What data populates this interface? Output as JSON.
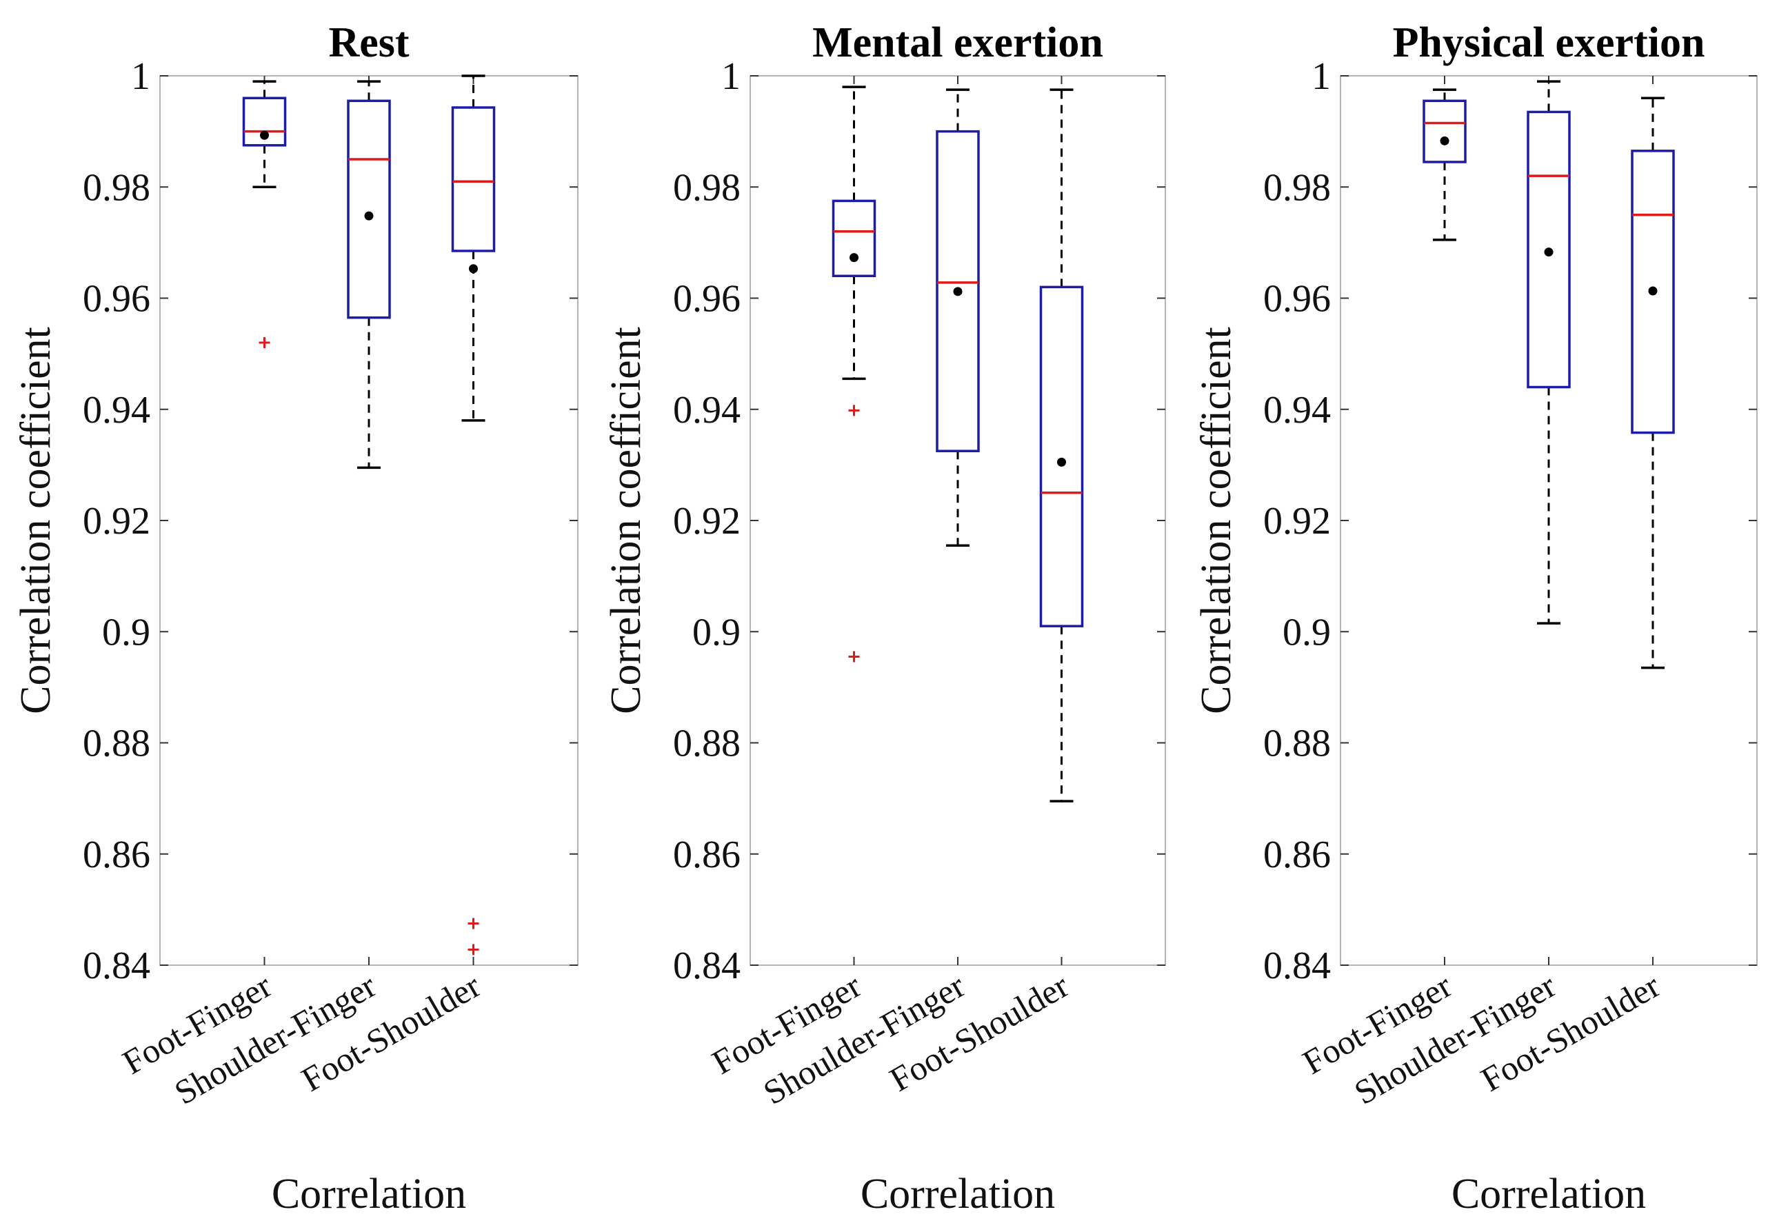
{
  "chart_data": [
    {
      "type": "box",
      "title": "Rest",
      "xlabel": "Correlation",
      "ylabel": "Correlation coefficient",
      "ylim": [
        0.84,
        1.0
      ],
      "yticks": [
        "0.84",
        "0.86",
        "0.88",
        "0.9",
        "0.92",
        "0.94",
        "0.96",
        "0.98",
        "1"
      ],
      "categories": [
        "Foot-Finger",
        "Shoulder-Finger",
        "Foot-Shoulder"
      ],
      "boxes": [
        {
          "whisker_low": 0.98,
          "q1": 0.9875,
          "median": 0.99,
          "q3": 0.996,
          "whisker_high": 0.999,
          "mean": 0.9893,
          "outliers": [
            0.952
          ]
        },
        {
          "whisker_low": 0.9295,
          "q1": 0.9565,
          "median": 0.985,
          "q3": 0.9955,
          "whisker_high": 0.999,
          "mean": 0.9748,
          "outliers": []
        },
        {
          "whisker_low": 0.938,
          "q1": 0.9685,
          "median": 0.981,
          "q3": 0.9943,
          "whisker_high": 1.0,
          "mean": 0.9653,
          "outliers": [
            0.8475,
            0.8428
          ]
        }
      ]
    },
    {
      "type": "box",
      "title": "Mental exertion",
      "xlabel": "Correlation",
      "ylabel": "Correlation coefficient",
      "ylim": [
        0.84,
        1.0
      ],
      "yticks": [
        "0.84",
        "0.86",
        "0.88",
        "0.9",
        "0.92",
        "0.94",
        "0.96",
        "0.98",
        "1"
      ],
      "categories": [
        "Foot-Finger",
        "Shoulder-Finger",
        "Foot-Shoulder"
      ],
      "boxes": [
        {
          "whisker_low": 0.9455,
          "q1": 0.964,
          "median": 0.972,
          "q3": 0.9775,
          "whisker_high": 0.998,
          "mean": 0.9673,
          "outliers": [
            0.9398,
            0.8955
          ]
        },
        {
          "whisker_low": 0.9155,
          "q1": 0.9325,
          "median": 0.9628,
          "q3": 0.99,
          "whisker_high": 0.9975,
          "mean": 0.9612,
          "outliers": []
        },
        {
          "whisker_low": 0.8695,
          "q1": 0.901,
          "median": 0.925,
          "q3": 0.962,
          "whisker_high": 0.9975,
          "mean": 0.9305,
          "outliers": []
        }
      ]
    },
    {
      "type": "box",
      "title": "Physical exertion",
      "xlabel": "Correlation",
      "ylabel": "Correlation coefficient",
      "ylim": [
        0.84,
        1.0
      ],
      "yticks": [
        "0.84",
        "0.86",
        "0.88",
        "0.9",
        "0.92",
        "0.94",
        "0.96",
        "0.98",
        "1"
      ],
      "categories": [
        "Foot-Finger",
        "Shoulder-Finger",
        "Foot-Shoulder"
      ],
      "boxes": [
        {
          "whisker_low": 0.9705,
          "q1": 0.9845,
          "median": 0.9915,
          "q3": 0.9955,
          "whisker_high": 0.9975,
          "mean": 0.9883,
          "outliers": []
        },
        {
          "whisker_low": 0.9015,
          "q1": 0.944,
          "median": 0.982,
          "q3": 0.9935,
          "whisker_high": 0.999,
          "mean": 0.9683,
          "outliers": []
        },
        {
          "whisker_low": 0.8935,
          "q1": 0.9358,
          "median": 0.975,
          "q3": 0.9865,
          "whisker_high": 0.996,
          "mean": 0.9613,
          "outliers": []
        }
      ]
    }
  ]
}
